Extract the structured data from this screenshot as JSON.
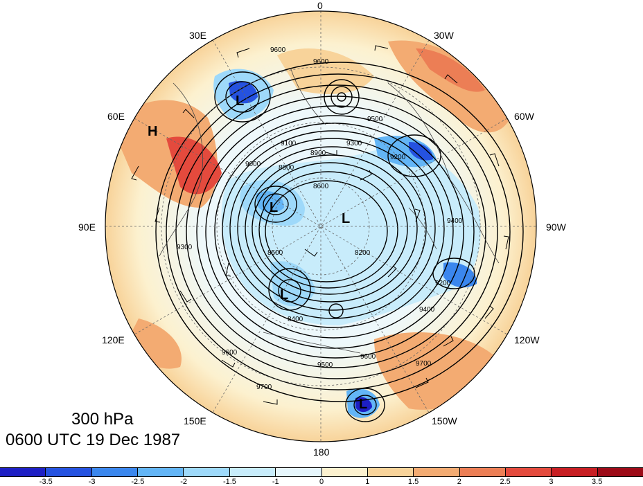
{
  "title": {
    "level": "300 hPa",
    "time": "0600 UTC 19 Dec 1987"
  },
  "longitude_labels": {
    "lon_0": "0",
    "lon_30w": "30W",
    "lon_60w": "60W",
    "lon_90w": "90W",
    "lon_120w": "120W",
    "lon_150w": "150W",
    "lon_180": "180",
    "lon_150e": "150E",
    "lon_120e": "120E",
    "lon_90e": "90E",
    "lon_60e": "60E",
    "lon_30e": "30E"
  },
  "pressure_centers": [
    {
      "id": "H",
      "label": "H"
    },
    {
      "id": "L1",
      "label": "L"
    },
    {
      "id": "L2",
      "label": "L"
    },
    {
      "id": "L3",
      "label": "L"
    },
    {
      "id": "L4",
      "label": "L"
    },
    {
      "id": "L5",
      "label": "L"
    }
  ],
  "contour_labels": [
    "9600",
    "9600",
    "9500",
    "9300",
    "9200",
    "9100",
    "9000",
    "8900",
    "8800",
    "8600",
    "8500",
    "8400",
    "8200",
    "9700",
    "9400",
    "9600",
    "9700",
    "9500",
    "9600",
    "9300",
    "9400",
    "9200"
  ],
  "colorbar": {
    "ticks": [
      "-3.5",
      "-3",
      "-2.5",
      "-2",
      "-1.5",
      "-1",
      "0",
      "1",
      "1.5",
      "2",
      "2.5",
      "3",
      "3.5"
    ],
    "colors": [
      "#1d1fc4",
      "#2552e0",
      "#3b87ee",
      "#63b5f6",
      "#9ed9fa",
      "#c8ecfb",
      "#e6f6fc",
      "#fcf1cf",
      "#f8d39a",
      "#f3ab72",
      "#ec7e55",
      "#e44a3d",
      "#c81e23",
      "#9c0a17"
    ]
  }
}
